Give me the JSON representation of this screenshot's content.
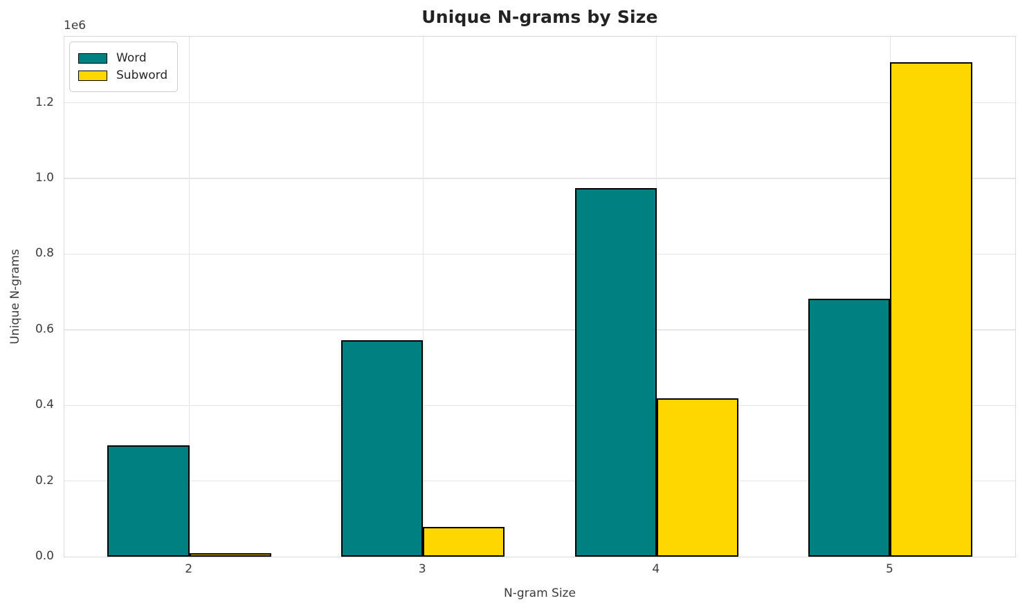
{
  "title": "Unique N-grams by Size",
  "colors": {
    "word_series": "#008080",
    "subword_series": "#FFD700",
    "bar_edge": "#000000",
    "grid": "#e5e5e5",
    "spine": "#d9d9d9",
    "text": "#3b3b3b",
    "title_text": "#222222"
  },
  "chart_data": {
    "type": "bar",
    "title": "Unique N-grams by Size",
    "xlabel": "N-gram Size",
    "ylabel": "Unique N-grams",
    "y_offset_label": "1e6",
    "categories": [
      "2",
      "3",
      "4",
      "5"
    ],
    "series": [
      {
        "name": "Word",
        "color": "#008080",
        "values": [
          295000,
          572000,
          975000,
          682000
        ]
      },
      {
        "name": "Subword",
        "color": "#FFD700",
        "values": [
          10000,
          78000,
          418000,
          1307000
        ]
      }
    ],
    "ylim": [
      0,
      1375000
    ],
    "yticks": [
      0,
      200000,
      400000,
      600000,
      800000,
      1000000,
      1200000
    ],
    "ytick_labels": [
      "0.0",
      "0.2",
      "0.4",
      "0.6",
      "0.8",
      "1.0",
      "1.2"
    ],
    "bar_width_frac": 0.35,
    "grid": true,
    "legend_position": "upper left"
  }
}
